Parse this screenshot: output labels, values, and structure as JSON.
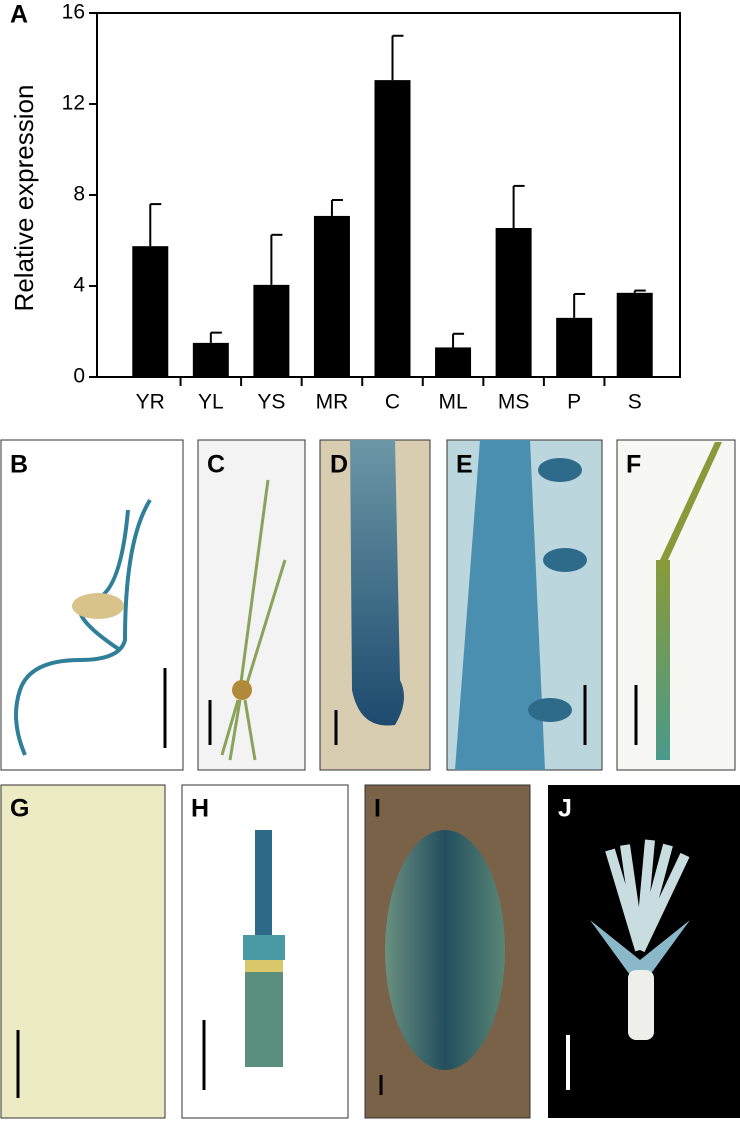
{
  "chart_data": {
    "type": "bar",
    "panel_label": "A",
    "y_label": "Relative expression",
    "categories": [
      "YR",
      "YL",
      "YS",
      "MR",
      "C",
      "ML",
      "MS",
      "P",
      "S"
    ],
    "values": [
      5.75,
      1.5,
      4.05,
      7.08,
      13.05,
      1.3,
      6.55,
      2.6,
      3.7
    ],
    "errors": [
      1.85,
      0.45,
      2.2,
      0.7,
      1.95,
      0.6,
      1.85,
      1.05,
      0.1
    ],
    "color": "#000000",
    "ylim": [
      0,
      16
    ],
    "yticks": [
      0,
      4,
      8,
      12,
      16
    ]
  },
  "panels": [
    {
      "label": "B"
    },
    {
      "label": "C"
    },
    {
      "label": "D"
    },
    {
      "label": "E"
    },
    {
      "label": "F"
    },
    {
      "label": "G"
    },
    {
      "label": "H"
    },
    {
      "label": "I"
    },
    {
      "label": "J"
    }
  ]
}
